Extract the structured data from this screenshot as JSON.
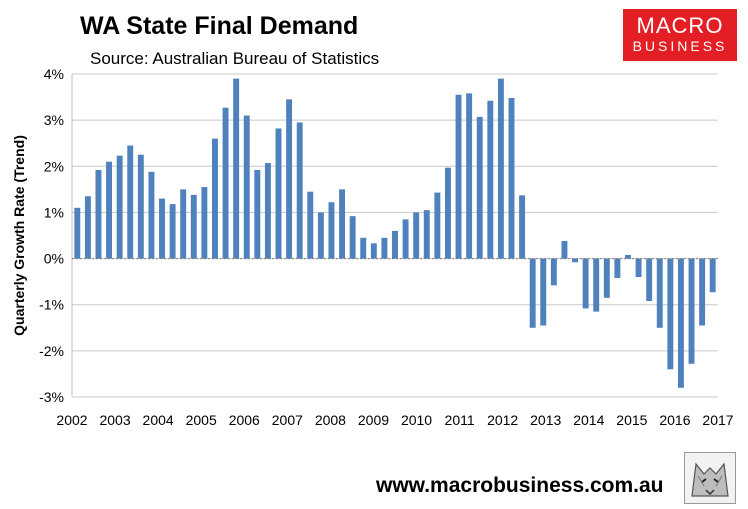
{
  "header": {
    "title": "WA State Final Demand",
    "subtitle": "Source: Australian Bureau of Statistics"
  },
  "logo": {
    "line1": "MACRO",
    "line2": "BUSINESS"
  },
  "footer": {
    "url": "www.macrobusiness.com.au"
  },
  "colors": {
    "bar": "#4f81bd",
    "logo_red": "#e31e24"
  },
  "chart_data": {
    "type": "bar",
    "title": "WA State Final Demand",
    "ylabel": "Quarterly Growth Rate (Trend)",
    "xlabel": "",
    "ylim": [
      -3,
      4
    ],
    "yticks": [
      4,
      3,
      2,
      1,
      0,
      -1,
      -2,
      -3
    ],
    "ytick_labels": [
      "4%",
      "3%",
      "2%",
      "1%",
      "0%",
      "-1%",
      "-2%",
      "-3%"
    ],
    "xtick_labels": [
      "2002",
      "2003",
      "2004",
      "2005",
      "2006",
      "2007",
      "2008",
      "2009",
      "2010",
      "2011",
      "2012",
      "2013",
      "2014",
      "2015",
      "2016",
      "2017"
    ],
    "grid": true,
    "series": [
      {
        "name": "Quarterly Growth Rate (Trend)",
        "values": [
          1.1,
          1.35,
          1.92,
          2.1,
          2.23,
          2.45,
          2.25,
          1.88,
          1.3,
          1.18,
          1.5,
          1.38,
          1.55,
          2.6,
          3.27,
          3.9,
          3.1,
          1.92,
          2.07,
          2.82,
          3.45,
          2.95,
          1.45,
          1.0,
          1.22,
          1.5,
          0.92,
          0.45,
          0.33,
          0.45,
          0.6,
          0.85,
          1.0,
          1.05,
          1.43,
          1.97,
          3.55,
          3.58,
          3.07,
          3.42,
          3.9,
          3.48,
          1.37,
          -1.5,
          -1.45,
          -0.58,
          0.38,
          -0.08,
          -1.08,
          -1.15,
          -0.85,
          -0.42,
          0.08,
          -0.4,
          -0.92,
          -1.5,
          -2.4,
          -2.8,
          -2.28,
          -1.45,
          -0.73
        ]
      }
    ]
  }
}
